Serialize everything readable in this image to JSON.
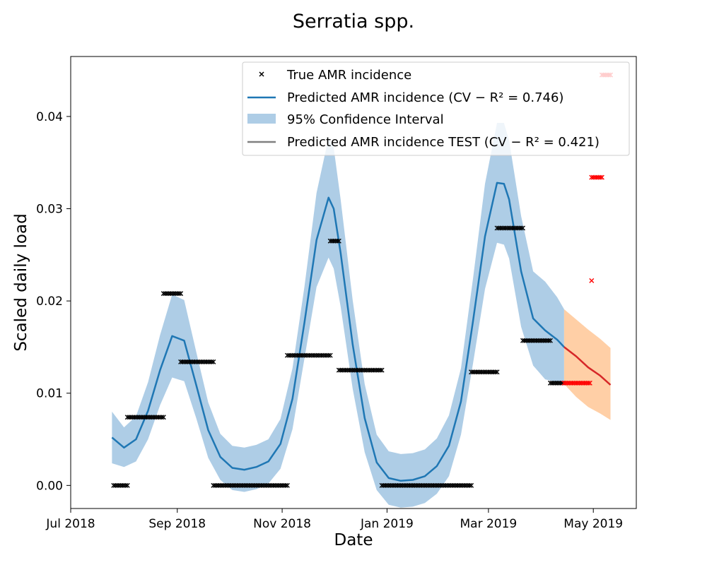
{
  "chart_data": {
    "type": "line",
    "title": "Serratia spp.",
    "xlabel": "Date",
    "ylabel": "Scaled daily load",
    "xlim": [
      "2018-07-01",
      "2019-05-26"
    ],
    "ylim": [
      -0.0025,
      0.0465
    ],
    "x_ticks": [
      {
        "date": "2018-07-01",
        "label": "Jul 2018"
      },
      {
        "date": "2018-09-01",
        "label": "Sep 2018"
      },
      {
        "date": "2018-11-01",
        "label": "Nov 2018"
      },
      {
        "date": "2019-01-01",
        "label": "Jan 2019"
      },
      {
        "date": "2019-03-01",
        "label": "Mar 2019"
      },
      {
        "date": "2019-05-01",
        "label": "May 2019"
      }
    ],
    "y_ticks": [
      {
        "value": 0.0,
        "label": "0.00"
      },
      {
        "value": 0.01,
        "label": "0.01"
      },
      {
        "value": 0.02,
        "label": "0.02"
      },
      {
        "value": 0.03,
        "label": "0.03"
      },
      {
        "value": 0.04,
        "label": "0.04"
      }
    ],
    "grid": false,
    "legend": {
      "placement": "top-right",
      "entries": [
        {
          "label_prefix": "True AMR incidence",
          "r2": "",
          "marker": "x",
          "color": "#000000"
        },
        {
          "label_prefix": "Predicted AMR incidence (CV − R² = ",
          "r2": "0.746",
          "marker": "line",
          "color": "#1f77b4"
        },
        {
          "label_prefix": "95% Confidence Interval",
          "r2": "",
          "marker": "patch",
          "color": "#aecde6"
        },
        {
          "label_prefix": "Predicted AMR incidence TEST (CV − R² = ",
          "r2": "0.421",
          "marker": "line",
          "color": "#808080"
        }
      ]
    },
    "colors": {
      "train_points": "#000000",
      "test_points": "#ff0000",
      "train_line": "#1f77b4",
      "train_ci": "#aecde6",
      "test_line": "#d62728",
      "test_ci": "#ffcfa6"
    },
    "observed_train": [
      {
        "start": "2018-07-26",
        "end": "2018-08-03",
        "value": 0.0
      },
      {
        "start": "2018-08-03",
        "end": "2018-08-24",
        "value": 0.0074
      },
      {
        "start": "2018-08-24",
        "end": "2018-09-03",
        "value": 0.0208
      },
      {
        "start": "2018-09-03",
        "end": "2018-09-22",
        "value": 0.0134
      },
      {
        "start": "2018-09-22",
        "end": "2018-11-04",
        "value": 0.0
      },
      {
        "start": "2018-11-04",
        "end": "2018-11-29",
        "value": 0.0141
      },
      {
        "start": "2018-11-29",
        "end": "2018-12-04",
        "value": 0.0265
      },
      {
        "start": "2018-12-04",
        "end": "2018-12-29",
        "value": 0.0125
      },
      {
        "start": "2018-12-29",
        "end": "2019-02-19",
        "value": 0.0
      },
      {
        "start": "2019-02-19",
        "end": "2019-03-06",
        "value": 0.0123
      },
      {
        "start": "2019-03-06",
        "end": "2019-03-21",
        "value": 0.0279
      },
      {
        "start": "2019-03-21",
        "end": "2019-04-06",
        "value": 0.0157
      },
      {
        "start": "2019-04-06",
        "end": "2019-04-14",
        "value": 0.0111
      }
    ],
    "observed_test": [
      {
        "start": "2019-04-14",
        "end": "2019-04-29",
        "value": 0.0111
      },
      {
        "start": "2019-04-30",
        "end": "2019-04-30",
        "value": 0.0222
      },
      {
        "start": "2019-04-30",
        "end": "2019-05-06",
        "value": 0.0334
      },
      {
        "start": "2019-05-06",
        "end": "2019-05-11",
        "value": 0.0445
      }
    ],
    "series": [
      {
        "x": [
          "2018-07-25",
          "2018-08-01",
          "2018-08-08",
          "2018-08-15",
          "2018-08-22",
          "2018-08-29",
          "2018-09-05",
          "2018-09-12",
          "2018-09-19",
          "2018-09-26",
          "2018-10-03",
          "2018-10-10",
          "2018-10-17",
          "2018-10-24",
          "2018-10-31",
          "2018-11-07",
          "2018-11-14",
          "2018-11-21",
          "2018-11-28",
          "2018-12-01",
          "2018-12-05",
          "2018-12-12",
          "2018-12-19",
          "2018-12-26",
          "2019-01-02",
          "2019-01-09",
          "2019-01-16",
          "2019-01-23",
          "2019-01-30",
          "2019-02-06",
          "2019-02-13",
          "2019-02-20",
          "2019-02-27",
          "2019-03-06",
          "2019-03-10",
          "2019-03-13",
          "2019-03-20",
          "2019-03-27",
          "2019-04-03",
          "2019-04-10",
          "2019-04-14"
        ],
        "y": [
          0.0052,
          0.0041,
          0.005,
          0.0081,
          0.0125,
          0.0162,
          0.0157,
          0.0109,
          0.006,
          0.0031,
          0.0019,
          0.0017,
          0.002,
          0.0026,
          0.0045,
          0.0094,
          0.0177,
          0.0266,
          0.0312,
          0.03,
          0.0252,
          0.0153,
          0.0073,
          0.0025,
          0.0008,
          0.0005,
          0.0006,
          0.001,
          0.0021,
          0.0043,
          0.0091,
          0.0178,
          0.027,
          0.0328,
          0.0327,
          0.031,
          0.0232,
          0.0181,
          0.0168,
          0.0158,
          0.015
        ],
        "lower": [
          0.0024,
          0.002,
          0.0026,
          0.005,
          0.0087,
          0.0117,
          0.0113,
          0.0073,
          0.003,
          0.0006,
          -0.0005,
          -0.0007,
          -0.0004,
          0.0002,
          0.0018,
          0.0061,
          0.0138,
          0.0215,
          0.0247,
          0.0235,
          0.0194,
          0.0105,
          0.0036,
          -0.0005,
          -0.0021,
          -0.0024,
          -0.0023,
          -0.0019,
          -0.0009,
          0.001,
          0.0055,
          0.0132,
          0.0213,
          0.0263,
          0.0261,
          0.0246,
          0.0172,
          0.013,
          0.0115,
          0.0112,
          0.011
        ],
        "upper": [
          0.008,
          0.0063,
          0.0075,
          0.0112,
          0.0163,
          0.0207,
          0.0201,
          0.0145,
          0.009,
          0.0056,
          0.0043,
          0.0041,
          0.0044,
          0.005,
          0.0072,
          0.0127,
          0.0216,
          0.0317,
          0.0377,
          0.0366,
          0.031,
          0.0201,
          0.011,
          0.0055,
          0.0037,
          0.0034,
          0.0035,
          0.0039,
          0.0051,
          0.0076,
          0.0127,
          0.0224,
          0.0327,
          0.0393,
          0.0393,
          0.0374,
          0.0292,
          0.0232,
          0.0221,
          0.0204,
          0.0191
        ]
      },
      {
        "x": [
          "2019-04-14",
          "2019-04-21",
          "2019-04-28",
          "2019-05-05",
          "2019-05-11"
        ],
        "y": [
          0.015,
          0.014,
          0.0128,
          0.0119,
          0.0109
        ],
        "lower": [
          0.011,
          0.0096,
          0.0085,
          0.0078,
          0.0071
        ],
        "upper": [
          0.0191,
          0.018,
          0.0169,
          0.0159,
          0.0149
        ]
      }
    ]
  }
}
